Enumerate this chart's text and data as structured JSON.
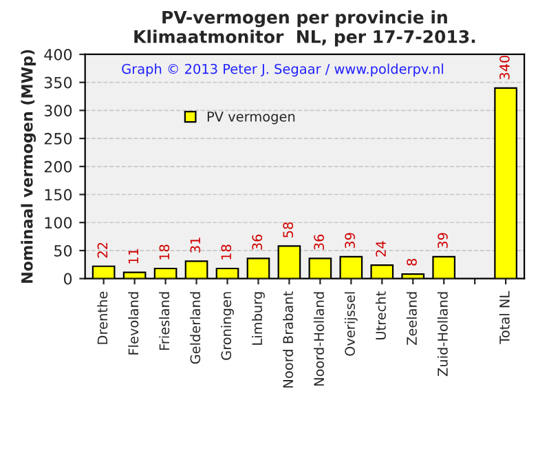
{
  "chart_data": {
    "type": "bar",
    "title": "PV-vermogen per provincie in\nKlimaatmonitor  NL, per 17-7-2013.",
    "ylabel": "Nominaal vermogen (MWp)",
    "annotations": [
      "Graph © 2013 Peter J. Segaar / www.polderpv.nl"
    ],
    "categories": [
      "Drenthe",
      "Flevoland",
      "Friesland",
      "Gelderland",
      "Groningen",
      "Limburg",
      "Noord Brabant",
      "Noord-Holland",
      "Overijssel",
      "Utrecht",
      "Zeeland",
      "Zuid-Holland",
      null,
      "Total NL"
    ],
    "series": [
      {
        "name": "PV vermogen",
        "color": "#ffff00",
        "values": [
          22,
          11,
          18,
          31,
          18,
          36,
          58,
          36,
          39,
          24,
          8,
          39,
          null,
          340
        ]
      }
    ],
    "ylim": [
      0,
      400
    ],
    "yticks": [
      0,
      50,
      100,
      150,
      200,
      250,
      300,
      350,
      400
    ],
    "grid": "y",
    "legend": "top left",
    "data_labels": true
  }
}
